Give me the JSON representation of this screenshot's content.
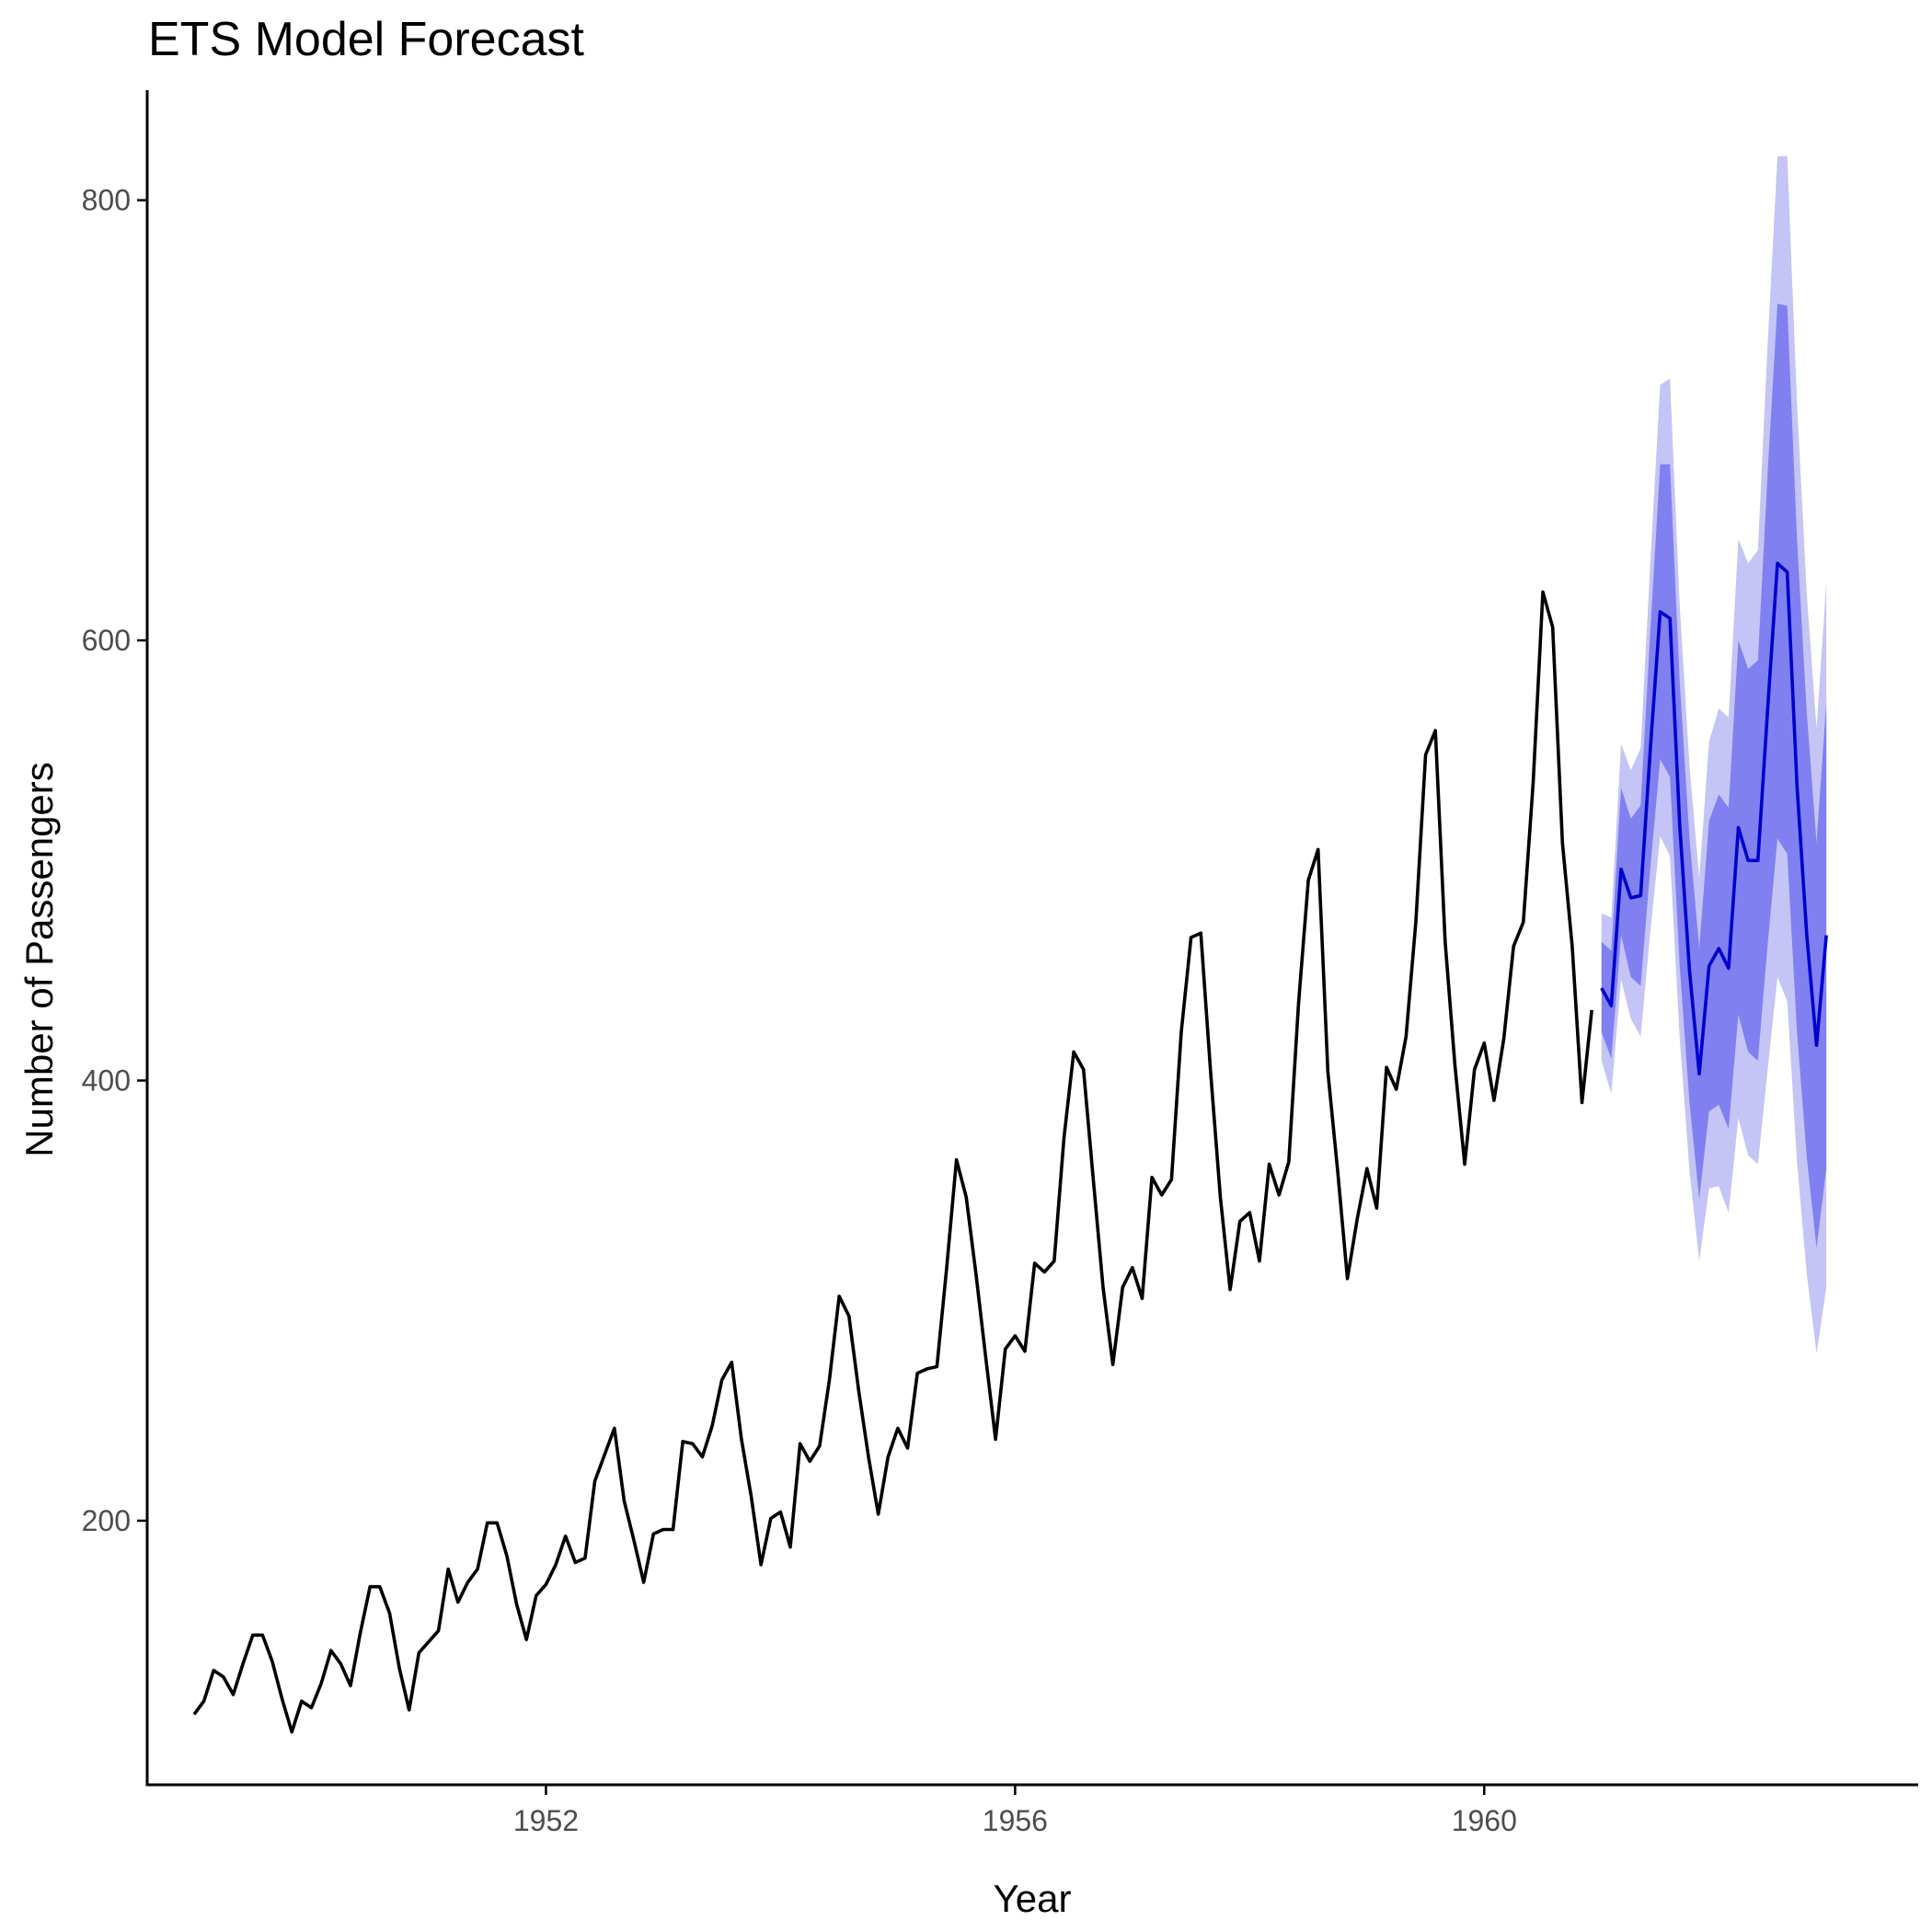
{
  "chart_data": {
    "type": "line",
    "title": "ETS Model Forecast",
    "xlabel": "Year",
    "ylabel": "Number of Passengers",
    "xlim": [
      1948.6,
      1963.7
    ],
    "ylim": [
      80,
      850
    ],
    "x_ticks": [
      1952,
      1956,
      1960
    ],
    "y_ticks": [
      200,
      400,
      600,
      800
    ],
    "grid": false,
    "legend": "none",
    "colors": {
      "history_line": "#000000",
      "forecast_line": "#0000cc",
      "interval_80": "#8080f0",
      "interval_95": "#c4c4f6",
      "axis": "#000000",
      "tick_label": "#4d4d4d"
    },
    "series": [
      {
        "role": "history",
        "start": "1949-01",
        "frequency": "monthly",
        "values": [
          112,
          118,
          132,
          129,
          121,
          135,
          148,
          148,
          136,
          119,
          104,
          118,
          115,
          126,
          141,
          135,
          125,
          149,
          170,
          170,
          158,
          133,
          114,
          140,
          145,
          150,
          178,
          163,
          172,
          178,
          199,
          199,
          184,
          162,
          146,
          166,
          171,
          180,
          193,
          181,
          183,
          218,
          230,
          242,
          209,
          191,
          172,
          194,
          196,
          196,
          236,
          235,
          229,
          243,
          264,
          272,
          237,
          211,
          180,
          201,
          204,
          188,
          235,
          227,
          234,
          264,
          302,
          293,
          259,
          229,
          203,
          229,
          242,
          233,
          267,
          269,
          270,
          315,
          364,
          347,
          312,
          274,
          237,
          278,
          284,
          277,
          317,
          313,
          318,
          374,
          413,
          405,
          355,
          306,
          271,
          306,
          315,
          301,
          356,
          348,
          355,
          422,
          465,
          467,
          404,
          347,
          305,
          336,
          340,
          318,
          362,
          348,
          363,
          435,
          491,
          505,
          404,
          359,
          310,
          337,
          360,
          342,
          406,
          396,
          420,
          472,
          548,
          559,
          463,
          407,
          362,
          405,
          417,
          391,
          419,
          461,
          472,
          535,
          622,
          606,
          508,
          461,
          390,
          432
        ]
      },
      {
        "role": "forecast",
        "start": "1961-01",
        "frequency": "monthly",
        "values": [
          442,
          434,
          496,
          483,
          484,
          551,
          613,
          610,
          516,
          450,
          403,
          452,
          460,
          451,
          515,
          500,
          500,
          569,
          635,
          631,
          534,
          466,
          416,
          466
        ],
        "lower_80": [
          422,
          410,
          466,
          447,
          443,
          497,
          546,
          538,
          452,
          390,
          346,
          386,
          389,
          378,
          430,
          413,
          409,
          462,
          510,
          503,
          422,
          365,
          324,
          360
        ],
        "upper_80": [
          463,
          459,
          533,
          519,
          525,
          605,
          680,
          680,
          581,
          510,
          460,
          518,
          530,
          524,
          600,
          587,
          591,
          676,
          753,
          752,
          646,
          567,
          508,
          572
        ],
        "lower_95": [
          409,
          394,
          446,
          428,
          420,
          468,
          511,
          502,
          419,
          359,
          318,
          351,
          352,
          340,
          383,
          366,
          362,
          405,
          447,
          436,
          363,
          312,
          276,
          306
        ],
        "upper_95": [
          476,
          474,
          553,
          541,
          551,
          636,
          716,
          719,
          616,
          543,
          492,
          554,
          569,
          565,
          646,
          635,
          641,
          735,
          820,
          820,
          708,
          621,
          560,
          626
        ]
      }
    ]
  }
}
